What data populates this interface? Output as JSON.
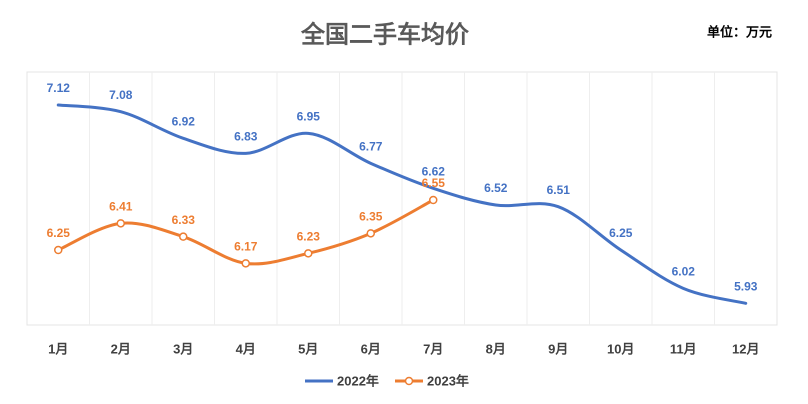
{
  "chart_data": {
    "type": "line",
    "title": "全国二手车均价",
    "unit": "单位：万元",
    "categories": [
      "1月",
      "2月",
      "3月",
      "4月",
      "5月",
      "6月",
      "7月",
      "8月",
      "9月",
      "10月",
      "11月",
      "12月"
    ],
    "series": [
      {
        "name": "2022年",
        "color": "#4472c4",
        "marker": false,
        "values": [
          7.12,
          7.08,
          6.92,
          6.83,
          6.95,
          6.77,
          6.62,
          6.52,
          6.51,
          6.25,
          6.02,
          5.93
        ]
      },
      {
        "name": "2023年",
        "color": "#ed7d31",
        "marker": true,
        "values": [
          6.25,
          6.41,
          6.33,
          6.17,
          6.23,
          6.35,
          6.55,
          null,
          null,
          null,
          null,
          null
        ]
      }
    ],
    "ylim": [
      5.8,
      7.3
    ],
    "smooth": true
  }
}
